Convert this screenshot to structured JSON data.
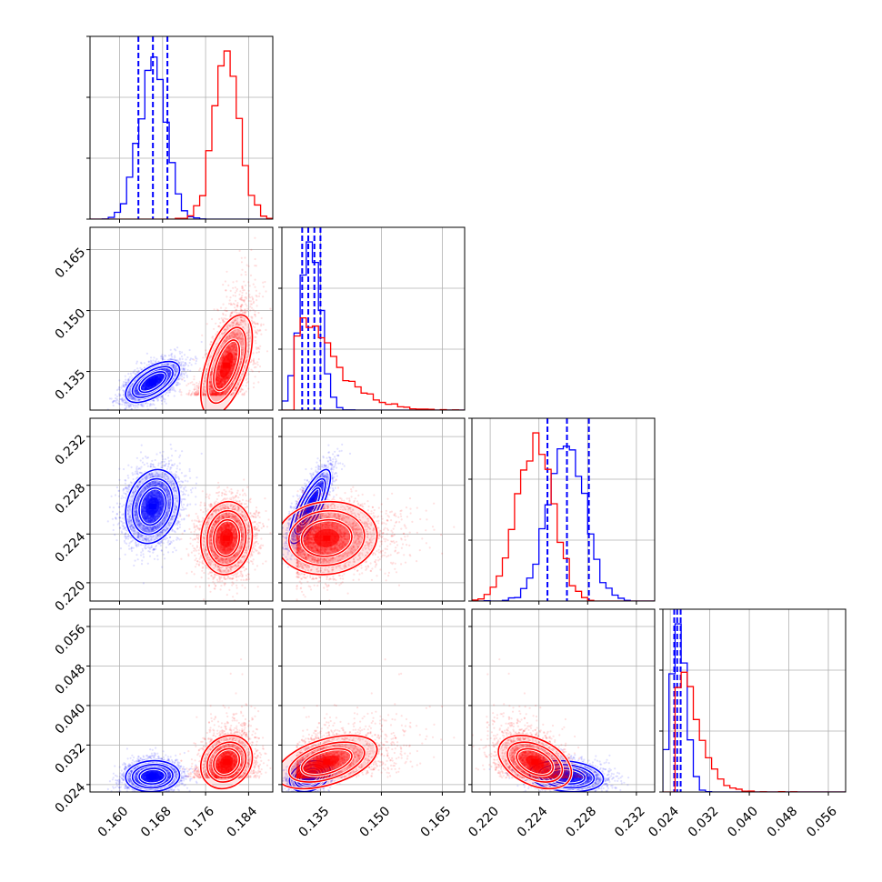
{
  "colors": {
    "blue": "#0000ff",
    "red": "#ff0000"
  },
  "chart_data": {
    "type": "corner",
    "grid": true,
    "title": "",
    "params": [
      {
        "ticks": [
          "0.160",
          "0.168",
          "0.176",
          "0.184"
        ],
        "tick_values": [
          0.16,
          0.168,
          0.176,
          0.184
        ],
        "range": [
          0.1545,
          0.1885
        ]
      },
      {
        "ticks": [
          "0.135",
          "0.150",
          "0.165"
        ],
        "tick_values": [
          0.135,
          0.15,
          0.165
        ],
        "range": [
          0.1255,
          0.1705
        ]
      },
      {
        "ticks": [
          "0.220",
          "0.224",
          "0.228",
          "0.232"
        ],
        "tick_values": [
          0.22,
          0.224,
          0.228,
          0.232
        ],
        "range": [
          0.2185,
          0.2335
        ]
      },
      {
        "ticks": [
          "0.024",
          "0.032",
          "0.040",
          "0.048",
          "0.056"
        ],
        "tick_values": [
          0.024,
          0.032,
          0.04,
          0.048,
          0.056
        ],
        "range": [
          0.0225,
          0.0595
        ]
      }
    ],
    "series": [
      {
        "color": "blue",
        "means": [
          0.1662,
          0.1325,
          0.2263,
          0.0257
        ],
        "sds": [
          0.0025,
          0.0025,
          0.0015,
          0.0009
        ],
        "corr": [
          [
            0,
            1,
            0.6
          ],
          [
            0,
            2,
            0.2
          ],
          [
            0,
            3,
            0.1
          ],
          [
            1,
            2,
            0.8
          ],
          [
            1,
            3,
            0.5
          ],
          [
            2,
            3,
            -0.3
          ]
        ],
        "quantiles": [
          [
            0.1635,
            0.1662,
            0.1689
          ],
          [
            0.1305,
            0.132,
            0.1335,
            0.135
          ],
          [
            0.2247,
            0.2263,
            0.2281
          ],
          [
            0.0248,
            0.0254,
            0.0261
          ]
        ]
      },
      {
        "color": "red",
        "means": [
          0.18,
          0.1367,
          0.2237,
          0.0285
        ],
        "sds": [
          0.0024,
          0.006,
          0.0015,
          0.0025
        ],
        "corr": [
          [
            0,
            1,
            0.6
          ],
          [
            0,
            2,
            0.1
          ],
          [
            0,
            3,
            0.2
          ],
          [
            1,
            2,
            0.1
          ],
          [
            1,
            3,
            0.5
          ],
          [
            2,
            3,
            -0.4
          ]
        ],
        "quantiles": null
      }
    ]
  }
}
